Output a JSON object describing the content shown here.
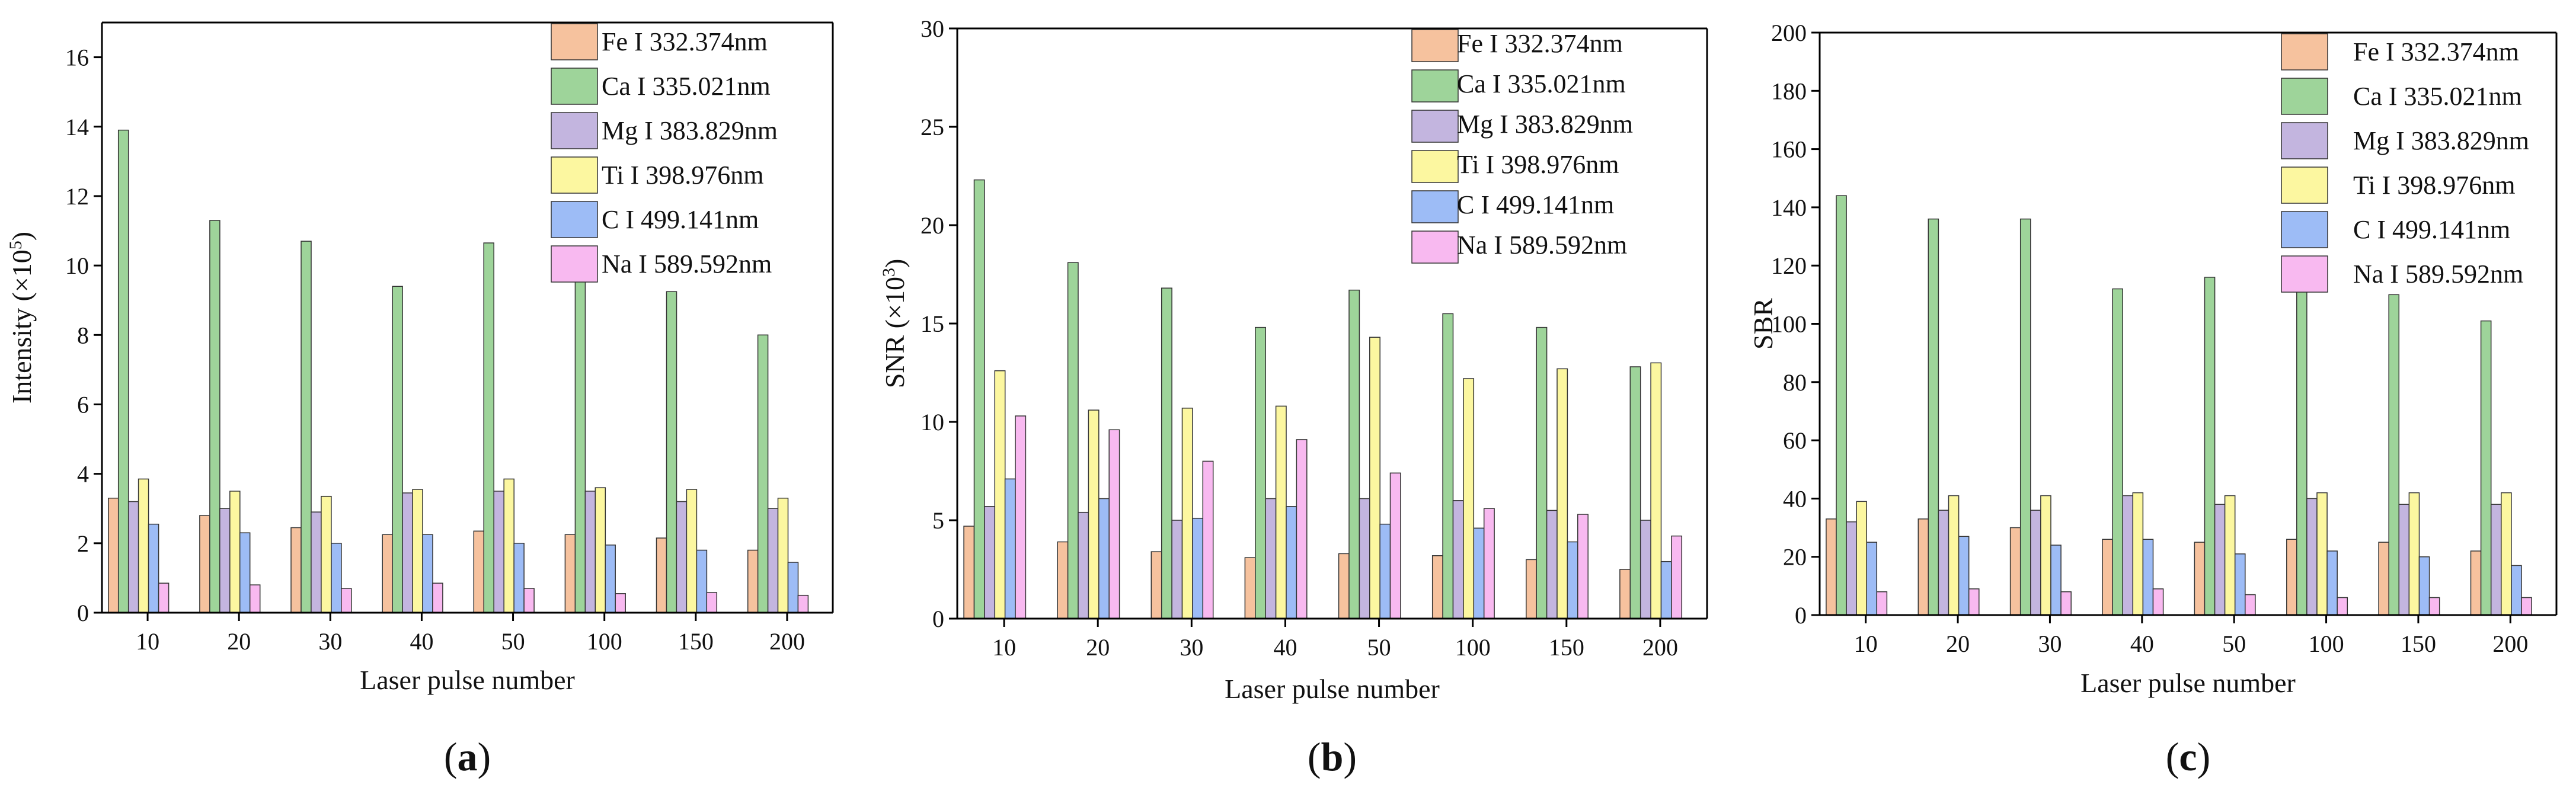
{
  "figure": {
    "panels": [
      {
        "label_open": "(",
        "label_letter": "a",
        "label_close": ")"
      },
      {
        "label_open": "(",
        "label_letter": "b",
        "label_close": ")"
      },
      {
        "label_open": "(",
        "label_letter": "c",
        "label_close": ")"
      }
    ]
  },
  "chart_data": [
    {
      "type": "bar",
      "panel": "a",
      "title": "",
      "xlabel": "Laser pulse number",
      "ylabel": "Intensity (×10⁵)",
      "ylabel_prefix": "Intensity (×10",
      "ylabel_exp": "5",
      "ylabel_suffix": ")",
      "ylim": [
        0,
        17
      ],
      "yticks": [
        0,
        2,
        4,
        6,
        8,
        10,
        12,
        14,
        16
      ],
      "categories": [
        "10",
        "20",
        "30",
        "40",
        "50",
        "100",
        "150",
        "200"
      ],
      "legend_position": "top-right",
      "series": [
        {
          "name": "Fe I 332.374nm",
          "color": "#f6c29e",
          "values": [
            3.3,
            2.8,
            2.45,
            2.25,
            2.35,
            2.25,
            2.15,
            1.8
          ]
        },
        {
          "name": "Ca I 335.021nm",
          "color": "#9ed49a",
          "values": [
            13.9,
            11.3,
            10.7,
            9.4,
            10.65,
            9.7,
            9.25,
            8.0
          ]
        },
        {
          "name": "Mg I 383.829nm",
          "color": "#c3b5df",
          "values": [
            3.2,
            3.0,
            2.9,
            3.45,
            3.5,
            3.5,
            3.2,
            3.0
          ]
        },
        {
          "name": "Ti I 398.976nm",
          "color": "#fcf7a0",
          "values": [
            3.85,
            3.5,
            3.35,
            3.55,
            3.85,
            3.6,
            3.55,
            3.3
          ]
        },
        {
          "name": "C I  499.141nm",
          "color": "#9dbcf6",
          "values": [
            2.55,
            2.3,
            2.0,
            2.25,
            2.0,
            1.95,
            1.8,
            1.45
          ]
        },
        {
          "name": "Na I 589.592nm",
          "color": "#f8b9f0",
          "values": [
            0.85,
            0.8,
            0.7,
            0.85,
            0.7,
            0.55,
            0.58,
            0.5
          ]
        }
      ]
    },
    {
      "type": "bar",
      "panel": "b",
      "title": "",
      "xlabel": "Laser pulse number",
      "ylabel": "SNR (×10³)",
      "ylabel_prefix": "SNR (×10",
      "ylabel_exp": "3",
      "ylabel_suffix": ")",
      "ylim": [
        0,
        30
      ],
      "yticks": [
        0,
        5,
        10,
        15,
        20,
        25,
        30
      ],
      "categories": [
        "10",
        "20",
        "30",
        "40",
        "50",
        "100",
        "150",
        "200"
      ],
      "legend_position": "top-right",
      "series": [
        {
          "name": "Fe I 332.374nm",
          "color": "#f6c29e",
          "values": [
            4.7,
            3.9,
            3.4,
            3.1,
            3.3,
            3.2,
            3.0,
            2.5
          ]
        },
        {
          "name": "Ca I 335.021nm",
          "color": "#9ed49a",
          "values": [
            22.3,
            18.1,
            16.8,
            14.8,
            16.7,
            15.5,
            14.8,
            12.8
          ]
        },
        {
          "name": "Mg I 383.829nm",
          "color": "#c3b5df",
          "values": [
            5.7,
            5.4,
            5.0,
            6.1,
            6.1,
            6.0,
            5.5,
            5.0
          ]
        },
        {
          "name": "Ti I 398.976nm",
          "color": "#fcf7a0",
          "values": [
            12.6,
            10.6,
            10.7,
            10.8,
            14.3,
            12.2,
            12.7,
            13.0
          ]
        },
        {
          "name": "C I  499.141nm",
          "color": "#9dbcf6",
          "values": [
            7.1,
            6.1,
            5.1,
            5.7,
            4.8,
            4.6,
            3.9,
            2.9
          ]
        },
        {
          "name": "Na I 589.592nm",
          "color": "#f8b9f0",
          "values": [
            10.3,
            9.6,
            8.0,
            9.1,
            7.4,
            5.6,
            5.3,
            4.2
          ]
        }
      ]
    },
    {
      "type": "bar",
      "panel": "c",
      "title": "",
      "xlabel": "Laser pulse number",
      "ylabel": "SBR",
      "ylabel_prefix": "SBR",
      "ylabel_exp": "",
      "ylabel_suffix": "",
      "ylim": [
        0,
        200
      ],
      "yticks": [
        0,
        20,
        40,
        60,
        80,
        100,
        120,
        140,
        160,
        180,
        200
      ],
      "categories": [
        "10",
        "20",
        "30",
        "40",
        "50",
        "100",
        "150",
        "200"
      ],
      "legend_position": "top-right",
      "series": [
        {
          "name": "Fe I 332.374nm",
          "color": "#f6c29e",
          "values": [
            33,
            33,
            30,
            26,
            25,
            26,
            25,
            22
          ]
        },
        {
          "name": "Ca I 335.021nm",
          "color": "#9ed49a",
          "values": [
            144,
            136,
            136,
            112,
            116,
            114,
            110,
            101
          ]
        },
        {
          "name": "Mg I 383.829nm",
          "color": "#c3b5df",
          "values": [
            32,
            36,
            36,
            41,
            38,
            40,
            38,
            38
          ]
        },
        {
          "name": "Ti I 398.976nm",
          "color": "#fcf7a0",
          "values": [
            39,
            41,
            41,
            42,
            41,
            42,
            42,
            42
          ]
        },
        {
          "name": "C I  499.141nm",
          "color": "#9dbcf6",
          "values": [
            25,
            27,
            24,
            26,
            21,
            22,
            20,
            17
          ]
        },
        {
          "name": "Na I 589.592nm",
          "color": "#f8b9f0",
          "values": [
            8,
            9,
            8,
            9,
            7,
            6,
            6,
            6
          ]
        }
      ]
    }
  ]
}
